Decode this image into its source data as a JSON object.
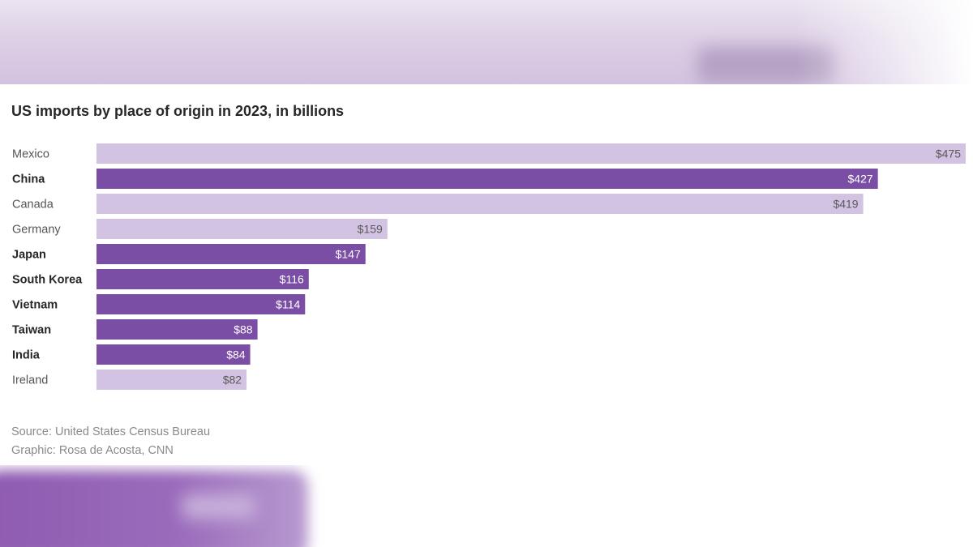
{
  "chart_data": {
    "type": "bar",
    "orientation": "horizontal",
    "title": "US imports by place of origin in 2023, in billions",
    "categories": [
      "Mexico",
      "China",
      "Canada",
      "Germany",
      "Japan",
      "South Korea",
      "Vietnam",
      "Taiwan",
      "India",
      "Ireland"
    ],
    "values": [
      475,
      427,
      419,
      159,
      147,
      116,
      114,
      88,
      84,
      82
    ],
    "value_labels": [
      "$475",
      "$427",
      "$419",
      "$159",
      "$147",
      "$116",
      "$114",
      "$88",
      "$84",
      "$82"
    ],
    "highlighted": [
      false,
      true,
      false,
      false,
      true,
      true,
      true,
      true,
      true,
      false
    ],
    "xlim": [
      0,
      475
    ],
    "grid": false,
    "colors": {
      "highlight": "#7b4ea5",
      "default": "#d3c3e3",
      "label_on_highlight": "#ffffff",
      "label_on_default": "#595959"
    }
  },
  "footer": {
    "source": "Source: United States Census Bureau",
    "credit": "Graphic: Rosa de Acosta, CNN"
  }
}
